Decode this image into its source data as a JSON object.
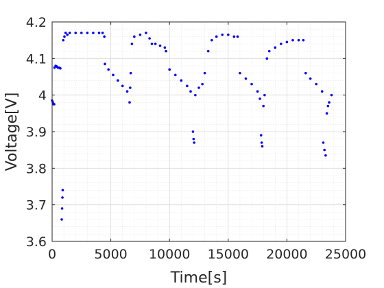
{
  "chart_data": {
    "type": "scatter",
    "title": "",
    "xlabel": "Time[s]",
    "ylabel": "Voltage[V]",
    "xlim": [
      0,
      25000
    ],
    "ylim": [
      3.6,
      4.2
    ],
    "x_ticks": [
      0,
      5000,
      10000,
      15000,
      20000,
      25000
    ],
    "x_tick_labels": [
      "0",
      "5000",
      "10000",
      "15000",
      "20000",
      "25000"
    ],
    "y_ticks": [
      3.6,
      3.7,
      3.8,
      3.9,
      4.0,
      4.1,
      4.2
    ],
    "y_tick_labels": [
      "3.6",
      "3.7",
      "3.8",
      "3.9",
      "4",
      "4.1",
      "4.2"
    ],
    "grid": true,
    "minor_grid": true,
    "marker_color": "#0000ff",
    "series": [
      {
        "points": [
          [
            0,
            3.985
          ],
          [
            60,
            3.98
          ],
          [
            120,
            3.975
          ],
          [
            180,
            3.975
          ],
          [
            200,
            4.075
          ],
          [
            300,
            4.08
          ],
          [
            400,
            4.078
          ],
          [
            500,
            4.075
          ],
          [
            600,
            4.075
          ],
          [
            700,
            4.073
          ],
          [
            820,
            3.66
          ],
          [
            850,
            3.69
          ],
          [
            880,
            3.72
          ],
          [
            900,
            3.74
          ],
          [
            950,
            4.15
          ],
          [
            1050,
            4.16
          ],
          [
            1150,
            4.17
          ],
          [
            1300,
            4.165
          ],
          [
            1500,
            4.17
          ],
          [
            2000,
            4.17
          ],
          [
            2500,
            4.17
          ],
          [
            3000,
            4.17
          ],
          [
            3500,
            4.17
          ],
          [
            4000,
            4.17
          ],
          [
            4300,
            4.17
          ],
          [
            4450,
            4.16
          ],
          [
            4500,
            4.085
          ],
          [
            4800,
            4.07
          ],
          [
            5200,
            4.055
          ],
          [
            5600,
            4.04
          ],
          [
            6000,
            4.025
          ],
          [
            6400,
            4.01
          ],
          [
            6600,
            3.98
          ],
          [
            6650,
            4.02
          ],
          [
            6700,
            4.06
          ],
          [
            6800,
            4.14
          ],
          [
            7000,
            4.16
          ],
          [
            7500,
            4.165
          ],
          [
            8000,
            4.17
          ],
          [
            8300,
            4.155
          ],
          [
            8500,
            4.14
          ],
          [
            8800,
            4.14
          ],
          [
            9200,
            4.135
          ],
          [
            9600,
            4.13
          ],
          [
            9700,
            4.12
          ],
          [
            10000,
            4.07
          ],
          [
            10500,
            4.055
          ],
          [
            11000,
            4.04
          ],
          [
            11500,
            4.025
          ],
          [
            11800,
            4.01
          ],
          [
            12000,
            3.9
          ],
          [
            12050,
            3.88
          ],
          [
            12100,
            3.87
          ],
          [
            12200,
            4.0
          ],
          [
            12500,
            4.02
          ],
          [
            12800,
            4.03
          ],
          [
            13000,
            4.06
          ],
          [
            13300,
            4.12
          ],
          [
            13600,
            4.15
          ],
          [
            14000,
            4.16
          ],
          [
            14500,
            4.165
          ],
          [
            15000,
            4.165
          ],
          [
            15500,
            4.16
          ],
          [
            15800,
            4.16
          ],
          [
            16000,
            4.06
          ],
          [
            16500,
            4.045
          ],
          [
            17000,
            4.03
          ],
          [
            17500,
            4.01
          ],
          [
            17700,
            3.99
          ],
          [
            17800,
            3.89
          ],
          [
            17850,
            3.87
          ],
          [
            17900,
            3.86
          ],
          [
            18000,
            3.97
          ],
          [
            18100,
            4.0
          ],
          [
            18300,
            4.1
          ],
          [
            18500,
            4.12
          ],
          [
            19000,
            4.13
          ],
          [
            19500,
            4.14
          ],
          [
            20000,
            4.145
          ],
          [
            20500,
            4.15
          ],
          [
            21000,
            4.15
          ],
          [
            21400,
            4.15
          ],
          [
            21600,
            4.06
          ],
          [
            22000,
            4.045
          ],
          [
            22500,
            4.03
          ],
          [
            23000,
            4.01
          ],
          [
            23100,
            3.87
          ],
          [
            23200,
            3.85
          ],
          [
            23300,
            3.835
          ],
          [
            23400,
            3.95
          ],
          [
            23500,
            3.97
          ],
          [
            23600,
            3.98
          ],
          [
            23800,
            4.0
          ]
        ]
      }
    ]
  }
}
